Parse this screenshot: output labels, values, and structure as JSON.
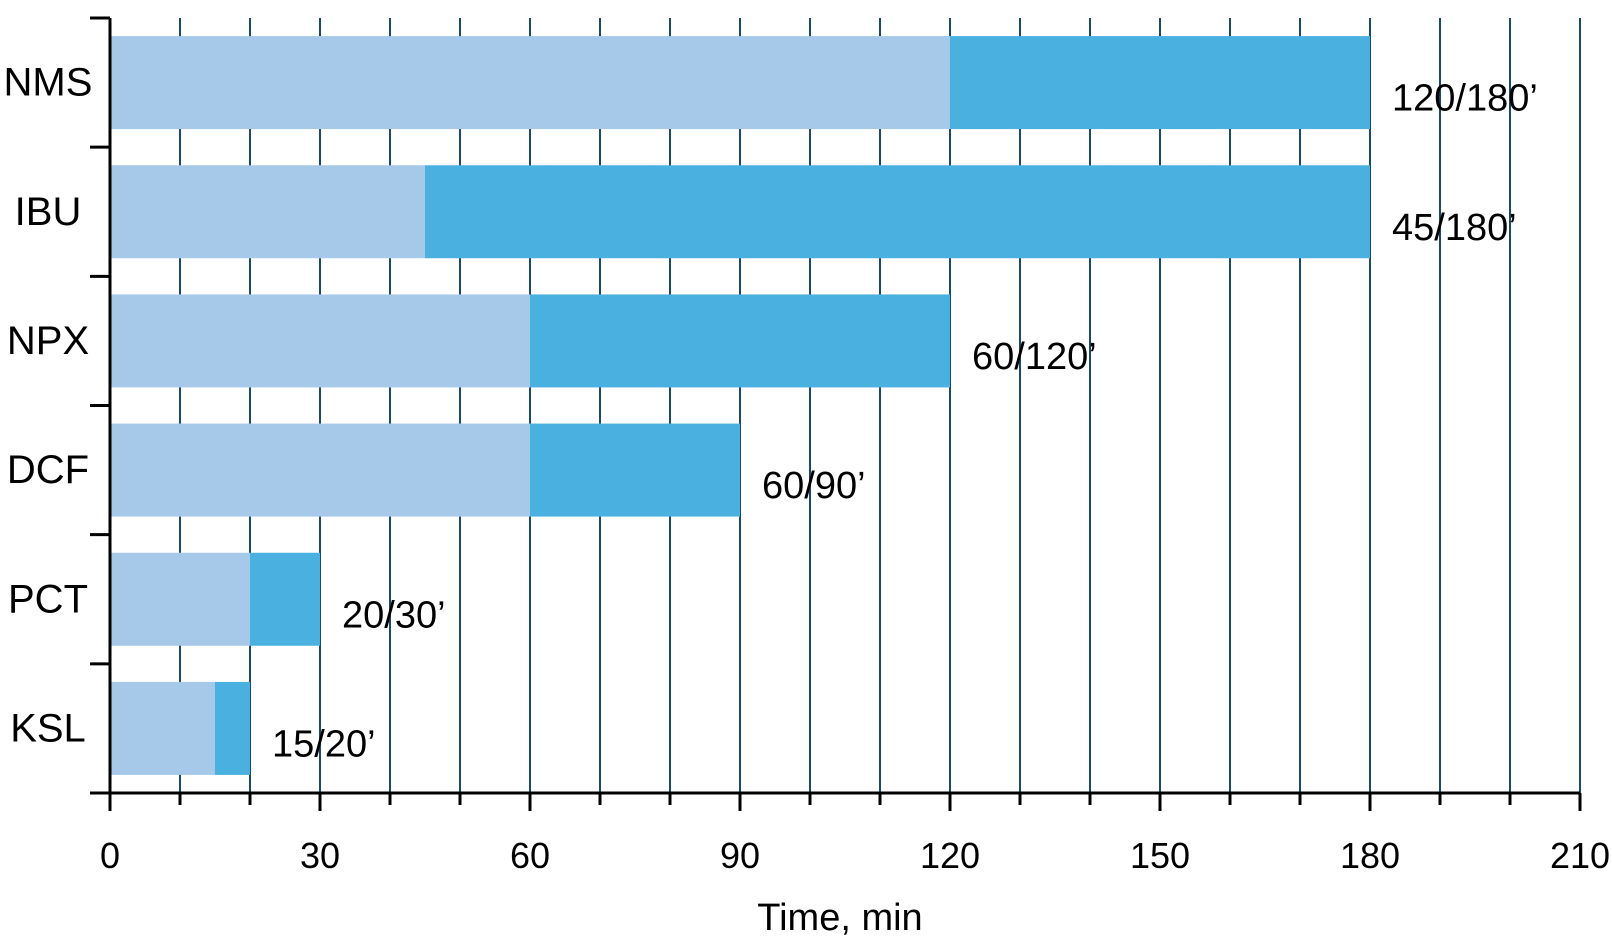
{
  "chart_data": {
    "type": "bar",
    "orientation": "horizontal",
    "stacked": true,
    "title": "",
    "xlabel": "Time, min",
    "ylabel": "",
    "xlim": [
      0,
      210
    ],
    "xticks": [
      0,
      30,
      60,
      90,
      120,
      150,
      180,
      210
    ],
    "minor_tick_step": 10,
    "grid": true,
    "legend": "none",
    "categories": [
      "NMS",
      "IBU",
      "NPX",
      "DCF",
      "PCT",
      "KSL"
    ],
    "series": [
      {
        "values": [
          120,
          45,
          60,
          60,
          20,
          15
        ],
        "color": "#a6c9ea"
      },
      {
        "values": [
          60,
          135,
          60,
          30,
          10,
          5
        ],
        "color": "#49b0e0"
      }
    ],
    "totals": [
      180,
      180,
      120,
      90,
      30,
      20
    ],
    "data_labels": [
      "120/180’",
      "45/180’",
      "60/120’",
      "60/90’",
      "20/30’",
      "15/20’"
    ],
    "colors": {
      "gridline": "#1a4a6b",
      "axis": "#000000",
      "text": "#000000"
    }
  }
}
